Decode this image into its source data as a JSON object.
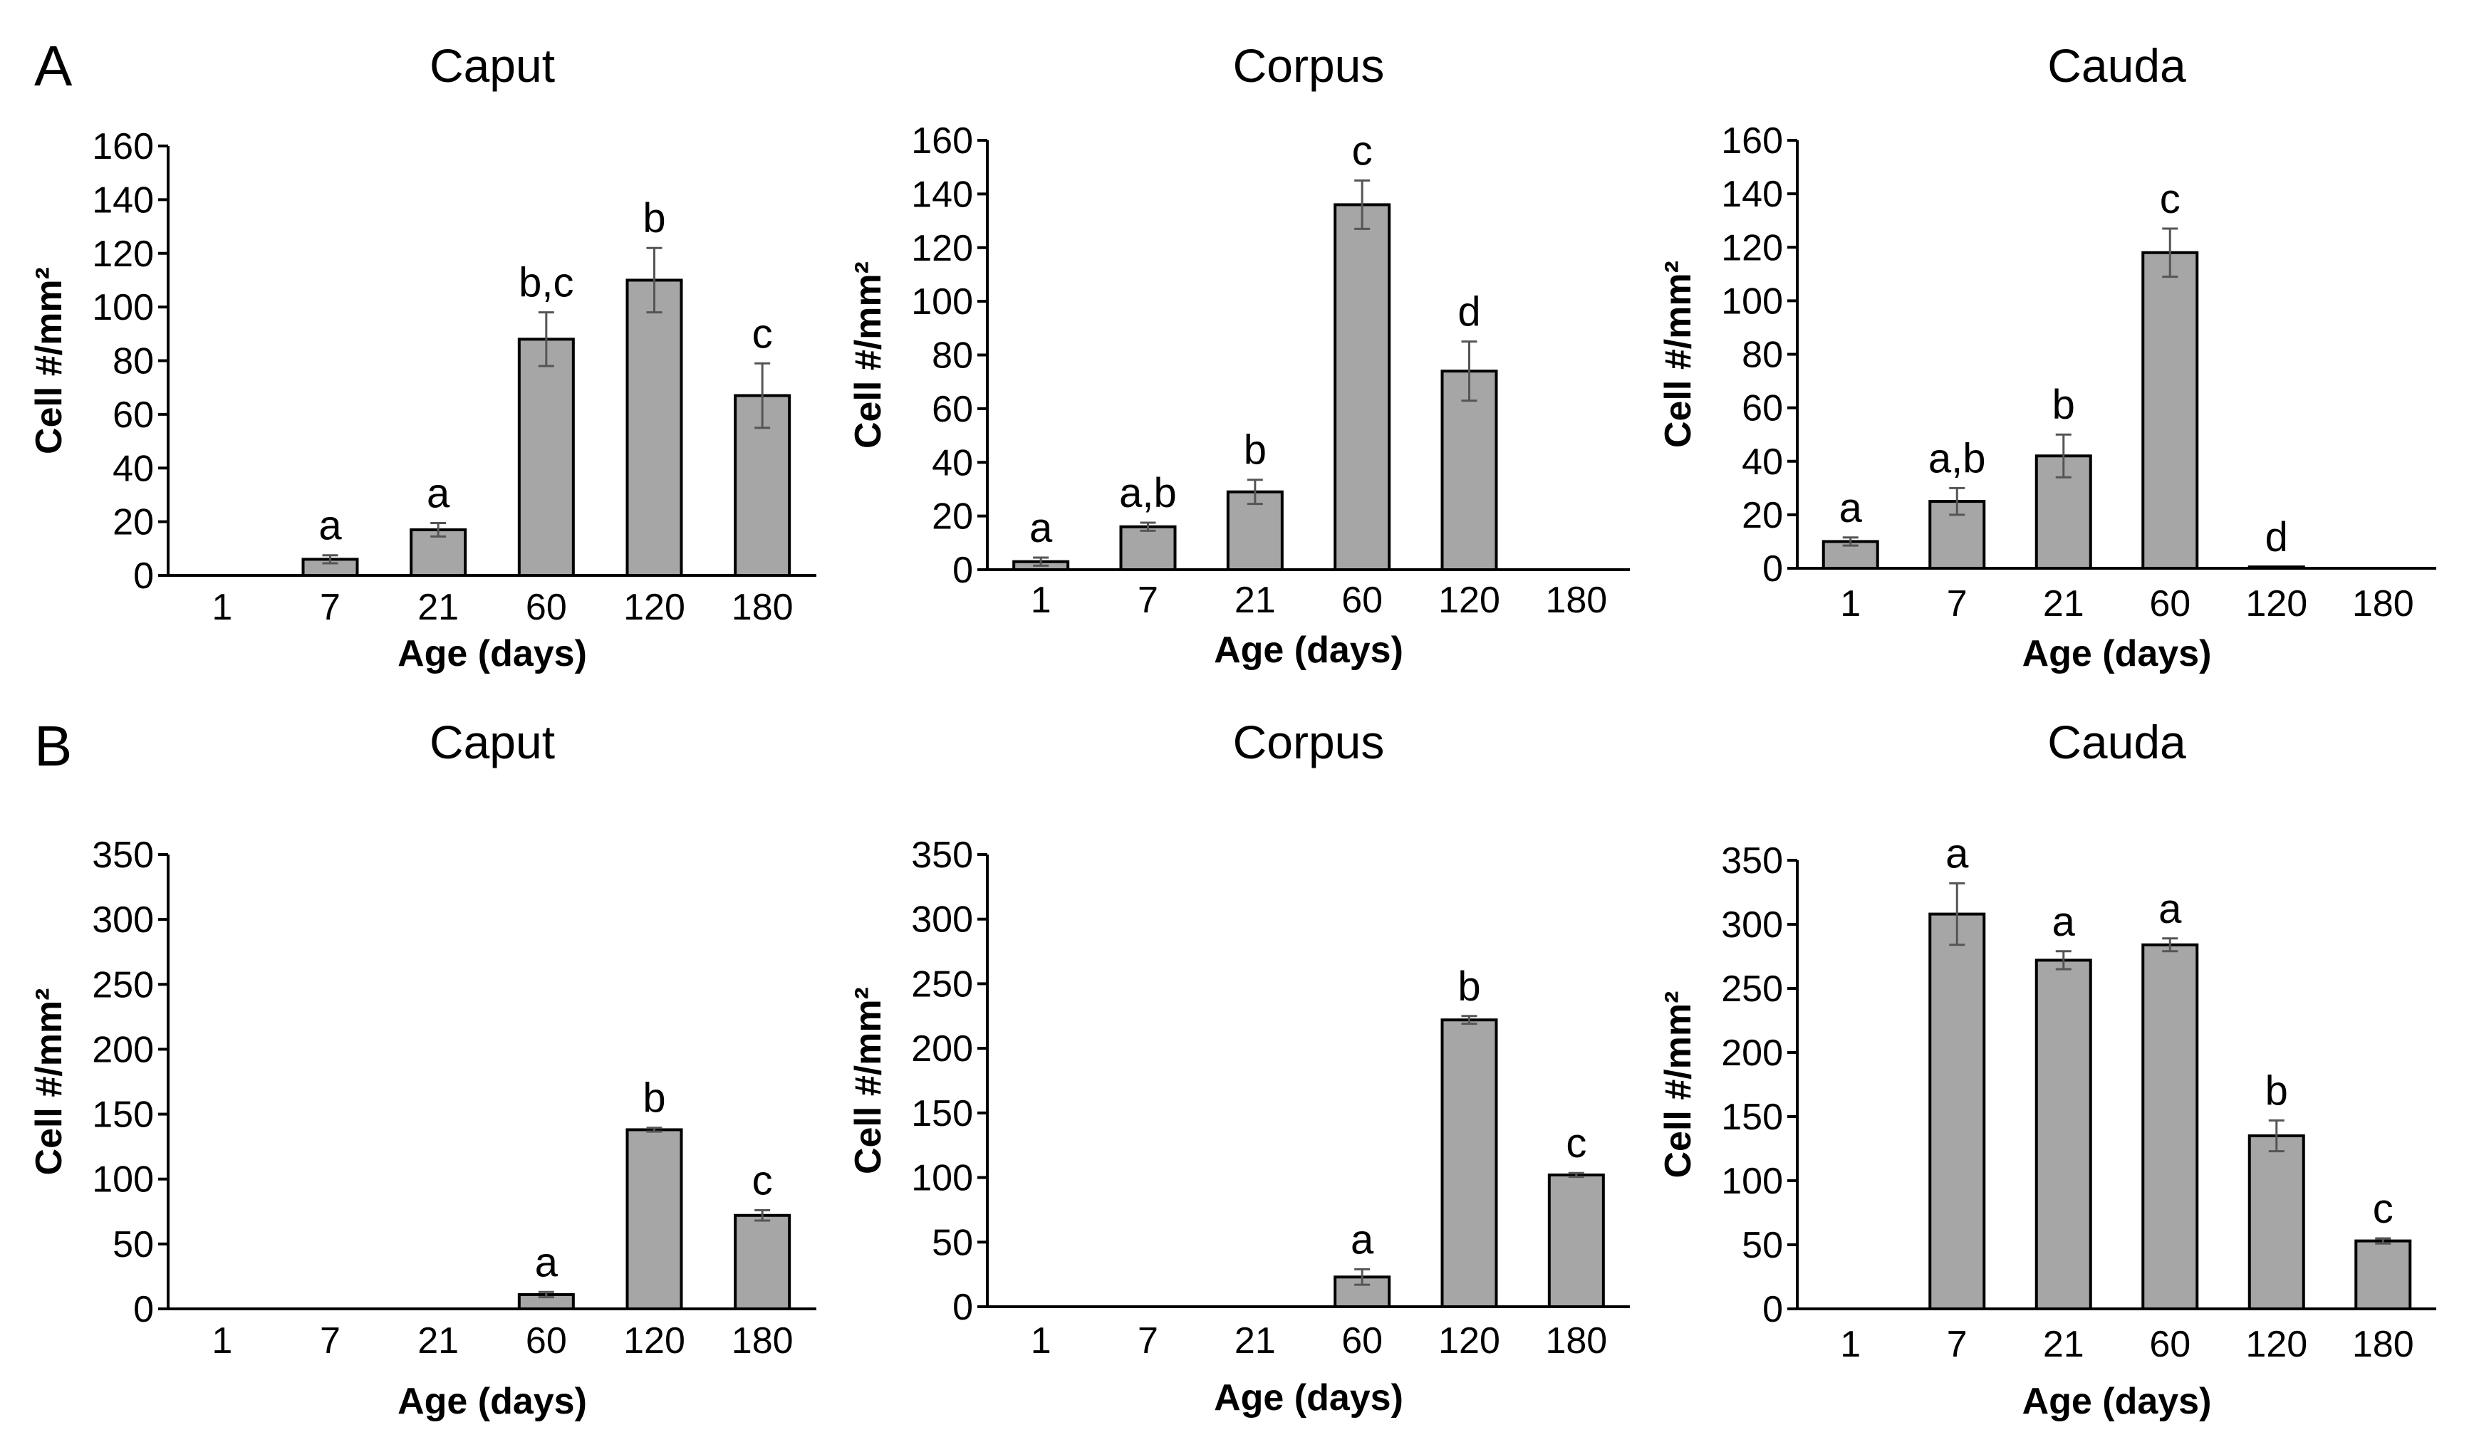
{
  "panel_labels": [
    "A",
    "B"
  ],
  "chart_data": [
    {
      "panel": "A",
      "type": "bar",
      "title": "Caput",
      "xlabel": "Age (days)",
      "ylabel": "Cell #/mm²",
      "categories": [
        "1",
        "7",
        "21",
        "60",
        "120",
        "180"
      ],
      "values": [
        null,
        6,
        17,
        88,
        110,
        67
      ],
      "errors": [
        null,
        1.5,
        2.5,
        10,
        12,
        12
      ],
      "labels": [
        "",
        "a",
        "a",
        "b,c",
        "b",
        "c"
      ],
      "ylim": [
        0,
        160
      ],
      "yticks": [
        0,
        20,
        40,
        60,
        80,
        100,
        120,
        140,
        160
      ]
    },
    {
      "panel": "A",
      "type": "bar",
      "title": "Corpus",
      "xlabel": "Age (days)",
      "ylabel": "Cell #/mm²",
      "categories": [
        "1",
        "7",
        "21",
        "60",
        "120",
        "180"
      ],
      "values": [
        3,
        16,
        29,
        136,
        74,
        null
      ],
      "errors": [
        1.5,
        1.5,
        4.5,
        9,
        11,
        null
      ],
      "labels": [
        "a",
        "a,b",
        "b",
        "c",
        "d",
        ""
      ],
      "ylim": [
        0,
        160
      ],
      "yticks": [
        0,
        20,
        40,
        60,
        80,
        100,
        120,
        140,
        160
      ]
    },
    {
      "panel": "A",
      "type": "bar",
      "title": "Cauda",
      "xlabel": "Age (days)",
      "ylabel": "Cell #/mm²",
      "categories": [
        "1",
        "7",
        "21",
        "60",
        "120",
        "180"
      ],
      "values": [
        10,
        25,
        42,
        118,
        0.5,
        null
      ],
      "errors": [
        1.5,
        5,
        8,
        9,
        0,
        null
      ],
      "labels": [
        "a",
        "a,b",
        "b",
        "c",
        "d",
        ""
      ],
      "ylim": [
        0,
        160
      ],
      "yticks": [
        0,
        20,
        40,
        60,
        80,
        100,
        120,
        140,
        160
      ]
    },
    {
      "panel": "B",
      "type": "bar",
      "title": "Caput",
      "xlabel": "Age (days)",
      "ylabel": "Cell #/mm²",
      "categories": [
        "1",
        "7",
        "21",
        "60",
        "120",
        "180"
      ],
      "values": [
        null,
        null,
        null,
        11,
        138,
        72
      ],
      "errors": [
        null,
        null,
        null,
        2,
        1.5,
        4
      ],
      "labels": [
        "",
        "",
        "",
        "a",
        "b",
        "c"
      ],
      "ylim": [
        0,
        350
      ],
      "yticks": [
        0,
        50,
        100,
        150,
        200,
        250,
        300,
        350
      ]
    },
    {
      "panel": "B",
      "type": "bar",
      "title": "Corpus",
      "xlabel": "Age (days)",
      "ylabel": "Cell #/mm²",
      "categories": [
        "1",
        "7",
        "21",
        "60",
        "120",
        "180"
      ],
      "values": [
        null,
        null,
        null,
        23,
        222,
        102
      ],
      "errors": [
        null,
        null,
        null,
        6,
        3,
        1.5
      ],
      "labels": [
        "",
        "",
        "",
        "a",
        "b",
        "c"
      ],
      "ylim": [
        0,
        350
      ],
      "yticks": [
        0,
        50,
        100,
        150,
        200,
        250,
        300,
        350
      ]
    },
    {
      "panel": "B",
      "type": "bar",
      "title": "Cauda",
      "xlabel": "Age (days)",
      "ylabel": "Cell #/mm²",
      "categories": [
        "1",
        "7",
        "21",
        "60",
        "120",
        "180"
      ],
      "values": [
        null,
        308,
        272,
        284,
        135,
        53
      ],
      "errors": [
        null,
        24,
        7,
        5,
        12,
        2
      ],
      "labels": [
        "",
        "a",
        "a",
        "a",
        "b",
        "c"
      ],
      "ylim": [
        0,
        350
      ],
      "yticks": [
        0,
        50,
        100,
        150,
        200,
        250,
        300,
        350
      ]
    }
  ],
  "colors": {
    "bar_fill": "#a6a6a6",
    "bar_stroke": "#000000",
    "error_bar": "#555555"
  }
}
